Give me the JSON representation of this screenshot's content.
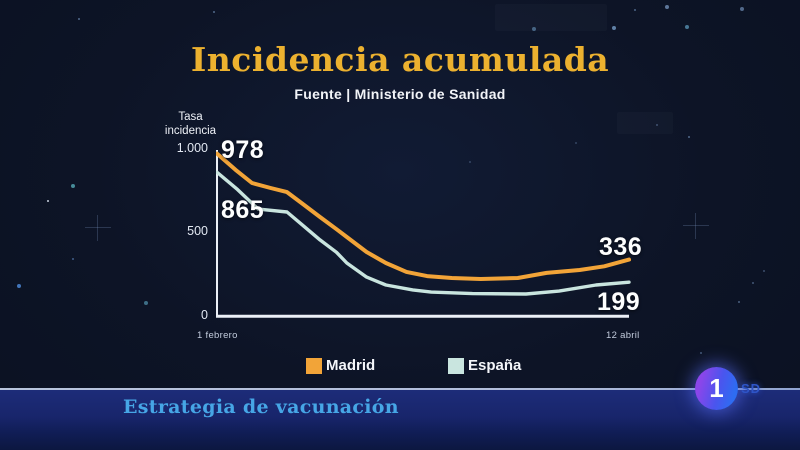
{
  "header": {
    "title": "Incidencia acumulada",
    "source": "Fuente | Ministerio de Sanidad"
  },
  "chart_data": {
    "type": "line",
    "title": "Incidencia acumulada",
    "source": "Fuente | Ministerio de Sanidad",
    "ylabel": "Tasa\nincidencia",
    "xlabel": "",
    "ylim": [
      0,
      1000
    ],
    "y_ticks": [
      1000,
      500,
      0
    ],
    "y_tick_labels": [
      "1.000",
      "500",
      "0"
    ],
    "x_start_label": "1 febrero",
    "x_end_label": "12 abril",
    "grid": false,
    "legend_position": "bottom",
    "series": [
      {
        "name": "Madrid",
        "color": "#f2a438",
        "value_labels": {
          "start": "978",
          "end": "336"
        },
        "points": [
          [
            0,
            978
          ],
          [
            0.045,
            880
          ],
          [
            0.085,
            800
          ],
          [
            0.13,
            770
          ],
          [
            0.17,
            745
          ],
          [
            0.21,
            670
          ],
          [
            0.25,
            594
          ],
          [
            0.29,
            520
          ],
          [
            0.315,
            473
          ],
          [
            0.363,
            382
          ],
          [
            0.41,
            315
          ],
          [
            0.46,
            261
          ],
          [
            0.51,
            236
          ],
          [
            0.57,
            224
          ],
          [
            0.64,
            218
          ],
          [
            0.73,
            224
          ],
          [
            0.8,
            255
          ],
          [
            0.88,
            273
          ],
          [
            0.94,
            295
          ],
          [
            1,
            336
          ]
        ]
      },
      {
        "name": "España",
        "color": "#c9e5df",
        "value_labels": {
          "start": "865",
          "end": "199"
        },
        "points": [
          [
            0,
            865
          ],
          [
            0.05,
            760
          ],
          [
            0.1,
            642
          ],
          [
            0.17,
            624
          ],
          [
            0.21,
            540
          ],
          [
            0.25,
            455
          ],
          [
            0.29,
            380
          ],
          [
            0.315,
            315
          ],
          [
            0.363,
            230
          ],
          [
            0.41,
            182
          ],
          [
            0.475,
            152
          ],
          [
            0.52,
            139
          ],
          [
            0.62,
            130
          ],
          [
            0.75,
            127
          ],
          [
            0.83,
            145
          ],
          [
            0.92,
            182
          ],
          [
            1,
            199
          ]
        ]
      }
    ]
  },
  "footer": {
    "ticker_text": "Estrategia de vacunación",
    "channel_number": "1",
    "quality_badge": "SD"
  }
}
